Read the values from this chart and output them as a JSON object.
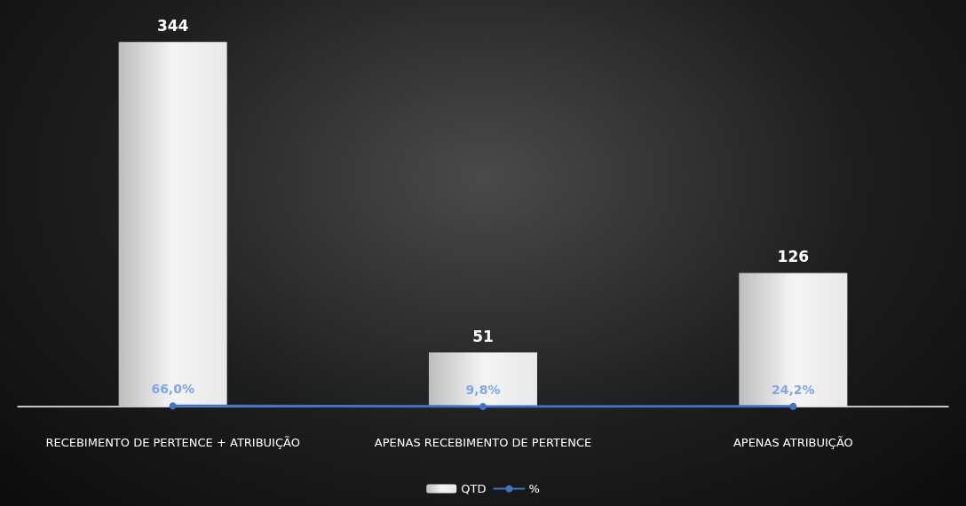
{
  "chart_data": {
    "type": "bar",
    "categories": [
      "RECEBIMENTO DE PERTENCE + ATRIBUIÇÃO",
      "APENAS RECEBIMENTO DE PERTENCE",
      "APENAS ATRIBUIÇÃO"
    ],
    "series": [
      {
        "name": "QTD",
        "color": "#e8e8e8",
        "values": [
          344,
          51,
          126
        ],
        "value_labels": [
          "344",
          "51",
          "126"
        ]
      },
      {
        "name": "%",
        "type": "line",
        "color": "#4472c4",
        "values": [
          0.66,
          0.098,
          0.242
        ],
        "value_labels": [
          "66,0%",
          "9,8%",
          "24,2%"
        ]
      }
    ],
    "legend": "bottom",
    "grid": false,
    "marker": "circle"
  }
}
